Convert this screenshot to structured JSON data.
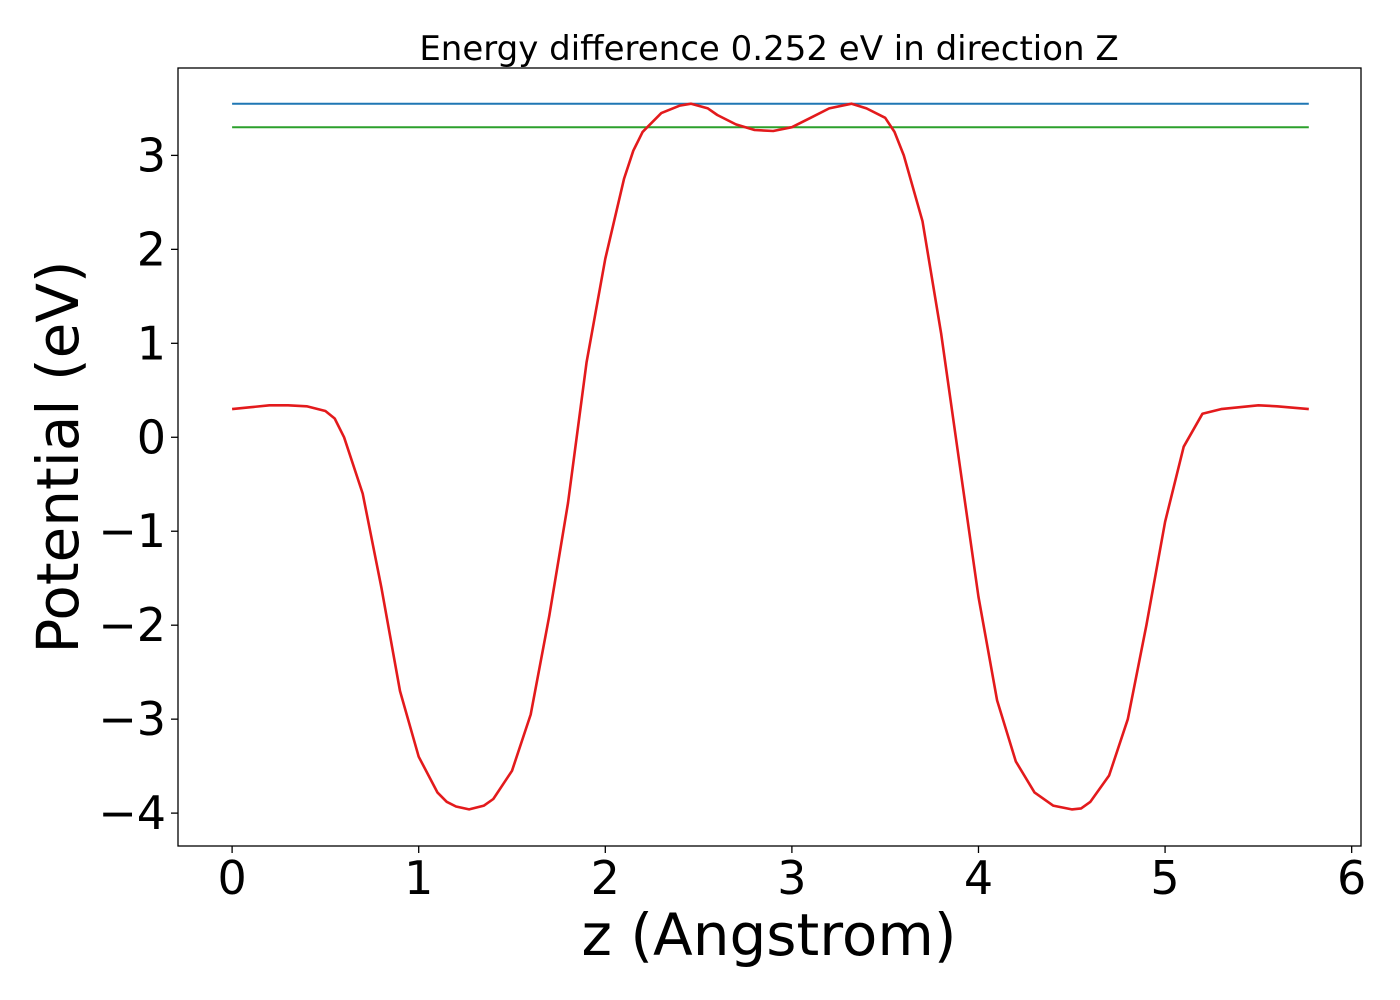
{
  "chart_data": {
    "type": "line",
    "title": "Energy difference 0.252 eV in direction Z",
    "xlabel": "z (Angstrom)",
    "ylabel": "Potential (eV)",
    "xlim": [
      -0.29,
      6.05
    ],
    "ylim": [
      -4.35,
      3.93
    ],
    "xticks": [
      0,
      1,
      2,
      3,
      4,
      5,
      6
    ],
    "xtick_labels": [
      "0",
      "1",
      "2",
      "3",
      "4",
      "5",
      "6"
    ],
    "yticks": [
      -4,
      -3,
      -2,
      -1,
      0,
      1,
      2,
      3
    ],
    "ytick_labels": [
      "−4",
      "−3",
      "−2",
      "−1",
      "0",
      "1",
      "2",
      "3"
    ],
    "grid": false,
    "series": [
      {
        "color": "#1f77b4",
        "x": [
          0,
          5.77
        ],
        "y": [
          3.55,
          3.55
        ]
      },
      {
        "color": "#2ca02c",
        "x": [
          0,
          5.77
        ],
        "y": [
          3.3,
          3.3
        ]
      },
      {
        "color": "#e31a1c",
        "x": [
          0.0,
          0.1,
          0.2,
          0.3,
          0.4,
          0.5,
          0.55,
          0.6,
          0.7,
          0.8,
          0.9,
          1.0,
          1.1,
          1.15,
          1.2,
          1.27,
          1.35,
          1.4,
          1.5,
          1.6,
          1.7,
          1.8,
          1.9,
          2.0,
          2.1,
          2.15,
          2.2,
          2.3,
          2.4,
          2.46,
          2.55,
          2.6,
          2.7,
          2.8,
          2.9,
          3.0,
          3.1,
          3.2,
          3.32,
          3.4,
          3.5,
          3.55,
          3.6,
          3.7,
          3.8,
          3.9,
          4.0,
          4.1,
          4.2,
          4.3,
          4.4,
          4.5,
          4.55,
          4.6,
          4.7,
          4.8,
          4.9,
          5.0,
          5.1,
          5.2,
          5.3,
          5.4,
          5.5,
          5.6,
          5.77
        ],
        "y": [
          0.3,
          0.32,
          0.34,
          0.34,
          0.33,
          0.28,
          0.2,
          0.0,
          -0.6,
          -1.6,
          -2.7,
          -3.4,
          -3.78,
          -3.88,
          -3.93,
          -3.96,
          -3.92,
          -3.85,
          -3.55,
          -2.95,
          -1.9,
          -0.7,
          0.8,
          1.9,
          2.75,
          3.05,
          3.25,
          3.45,
          3.53,
          3.55,
          3.5,
          3.43,
          3.33,
          3.27,
          3.26,
          3.3,
          3.4,
          3.5,
          3.55,
          3.5,
          3.4,
          3.25,
          3.0,
          2.3,
          1.1,
          -0.3,
          -1.7,
          -2.8,
          -3.45,
          -3.78,
          -3.92,
          -3.96,
          -3.95,
          -3.88,
          -3.6,
          -3.0,
          -2.0,
          -0.9,
          -0.1,
          0.25,
          0.3,
          0.32,
          0.34,
          0.33,
          0.3
        ]
      }
    ]
  }
}
